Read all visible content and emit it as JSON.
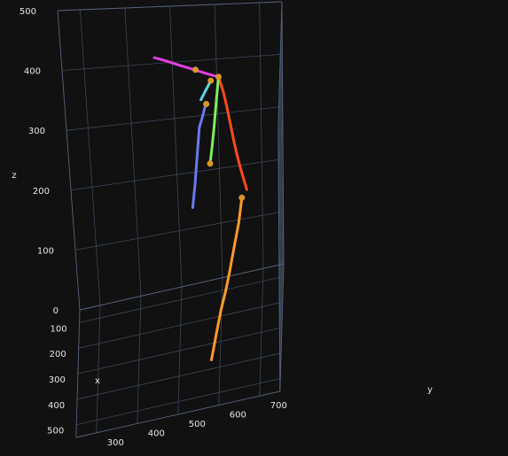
{
  "chart_data": {
    "type": "scatter3d",
    "axes": {
      "x": {
        "label": "x",
        "range": [
          50,
          550
        ],
        "ticks": [
          100,
          200,
          300,
          400,
          500
        ]
      },
      "y": {
        "label": "y",
        "range": [
          250,
          750
        ],
        "ticks": [
          300,
          400,
          500,
          600,
          700
        ]
      },
      "z": {
        "label": "z",
        "range": [
          0,
          500
        ],
        "ticks": [
          0,
          100,
          200,
          300,
          400,
          500
        ]
      }
    },
    "grid": true,
    "background": "#111111",
    "series": [
      {
        "color": "#e040e0",
        "points": [
          [
            165,
            465,
            462
          ],
          [
            175,
            490,
            460
          ],
          [
            190,
            520,
            458
          ],
          [
            205,
            555,
            455
          ],
          [
            218,
            585,
            452
          ],
          [
            228,
            610,
            450
          ]
        ]
      },
      {
        "color": "#ff4a1c",
        "points": [
          [
            228,
            610,
            450
          ],
          [
            242,
            620,
            430
          ],
          [
            258,
            628,
            408
          ],
          [
            275,
            636,
            382
          ],
          [
            292,
            644,
            356
          ],
          [
            308,
            652,
            334
          ],
          [
            322,
            660,
            316
          ],
          [
            334,
            666,
            304
          ],
          [
            346,
            672,
            293
          ]
        ]
      },
      {
        "color": "#7cf05a",
        "points": [
          [
            228,
            610,
            450
          ],
          [
            236,
            604,
            412
          ],
          [
            244,
            598,
            372
          ],
          [
            250,
            592,
            336
          ],
          [
            256,
            586,
            306
          ]
        ]
      },
      {
        "color": "#5ad8e8",
        "points": [
          [
            220,
            590,
            437
          ],
          [
            214,
            578,
            418
          ],
          [
            210,
            568,
            402
          ]
        ]
      },
      {
        "color": "#6a78f0",
        "points": [
          [
            215,
            578,
            394
          ],
          [
            210,
            570,
            370
          ],
          [
            206,
            562,
            350
          ],
          [
            205,
            555,
            300
          ],
          [
            204,
            548,
            250
          ],
          [
            200,
            540,
            205
          ]
        ]
      },
      {
        "color": "#ff9a2a",
        "points": [
          [
            340,
            660,
            276
          ],
          [
            352,
            652,
            236
          ],
          [
            362,
            640,
            196
          ],
          [
            372,
            628,
            156
          ],
          [
            378,
            618,
            126
          ],
          [
            384,
            606,
            96
          ],
          [
            392,
            594,
            60
          ],
          [
            404,
            580,
            18
          ]
        ]
      }
    ],
    "markers": [
      {
        "color": "#d9962a",
        "point": [
          228,
          610,
          450
        ]
      },
      {
        "color": "#d9962a",
        "point": [
          208,
          558,
          456
        ]
      },
      {
        "color": "#d9962a",
        "point": [
          220,
          592,
          440
        ]
      },
      {
        "color": "#d9962a",
        "point": [
          215,
          580,
          396
        ]
      },
      {
        "color": "#d9962a",
        "point": [
          256,
          586,
          306
        ]
      },
      {
        "color": "#d9962a",
        "point": [
          340,
          660,
          276
        ]
      }
    ]
  }
}
